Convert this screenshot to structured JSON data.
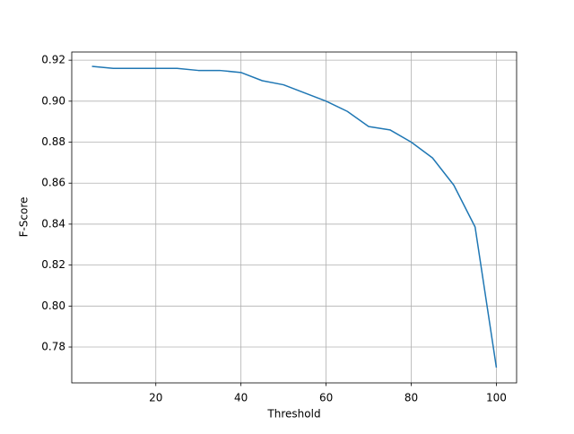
{
  "chart_data": {
    "type": "line",
    "x_label": "Threshold",
    "y_label": "F-Score",
    "x": [
      5,
      10,
      15,
      20,
      25,
      30,
      35,
      40,
      45,
      50,
      55,
      60,
      65,
      70,
      75,
      80,
      85,
      90,
      95,
      100
    ],
    "series": [
      {
        "color": "#1f77b4",
        "values": [
          0.917,
          0.916,
          0.916,
          0.916,
          0.916,
          0.915,
          0.915,
          0.914,
          0.91,
          0.908,
          0.904,
          0.9,
          0.895,
          0.8876,
          0.886,
          0.88,
          0.8723,
          0.859,
          0.8386,
          0.77
        ]
      }
    ],
    "xlim": [
      0.25,
      104.75
    ],
    "ylim": [
      0.7625,
      0.924
    ],
    "xticks": [
      20,
      40,
      60,
      80,
      100
    ],
    "yticks": [
      {
        "value": 0.78,
        "label": "0.78"
      },
      {
        "value": 0.8,
        "label": "0.80"
      },
      {
        "value": 0.82,
        "label": "0.82"
      },
      {
        "value": 0.84,
        "label": "0.84"
      },
      {
        "value": 0.86,
        "label": "0.86"
      },
      {
        "value": 0.88,
        "label": "0.88"
      },
      {
        "value": 0.9,
        "label": "0.90"
      },
      {
        "value": 0.92,
        "label": "0.92"
      }
    ],
    "grid": true
  }
}
